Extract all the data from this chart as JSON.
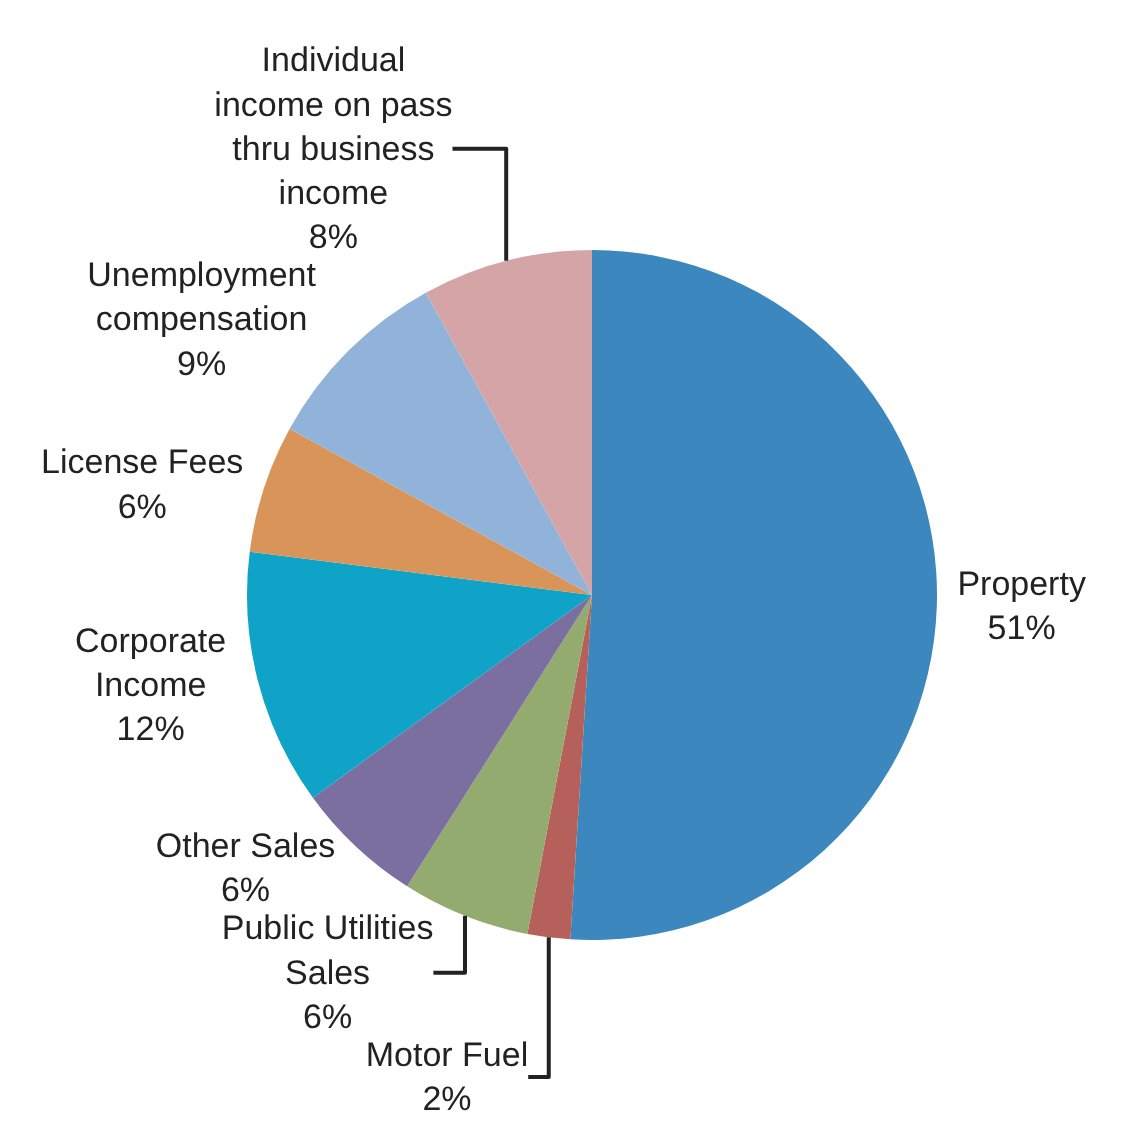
{
  "chart_data": {
    "type": "pie",
    "categories": [
      "Property",
      "Motor Fuel",
      "Public Utilities\nSales",
      "Other Sales",
      "Corporate\nIncome",
      "License Fees",
      "Unemployment\ncompensation",
      "Individual\nincome on pass\nthru business\nincome"
    ],
    "values": [
      51,
      2,
      6,
      6,
      12,
      6,
      9,
      8
    ],
    "value_labels": [
      "51%",
      "2%",
      "6%",
      "6%",
      "12%",
      "6%",
      "9%",
      "8%"
    ],
    "colors": [
      "#3c87bd",
      "#b5605a",
      "#93ab6e",
      "#7b6fa0",
      "#10a3c8",
      "#d99559",
      "#92b3d9",
      "#d4a4a6"
    ],
    "legend": false
  }
}
